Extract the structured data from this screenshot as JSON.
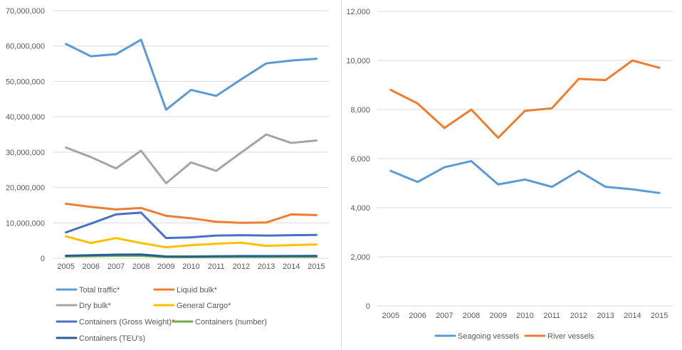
{
  "page": {
    "background_color": "#ffffff",
    "divider_color": "#d9d9d9",
    "gridline_color": "#d9d9d9",
    "axis_text_color": "#595959"
  },
  "chart_data": [
    {
      "id": "cargo-traffic",
      "type": "line",
      "title": "",
      "xlabel": "",
      "ylabel": "",
      "grid": true,
      "legend_position": "bottom-left-two-columns",
      "x": [
        2005,
        2006,
        2007,
        2008,
        2009,
        2010,
        2011,
        2012,
        2013,
        2014,
        2015
      ],
      "ylim": [
        0,
        70000000
      ],
      "ytick_step": 10000000,
      "series": [
        {
          "name": "Total traffic*",
          "color": "#5B9BD5",
          "values": [
            60600000,
            57100000,
            57700000,
            61800000,
            42000000,
            47600000,
            45900000,
            50600000,
            55100000,
            55900000,
            56400000
          ]
        },
        {
          "name": "Liquid bulk*",
          "color": "#ED7D31",
          "values": [
            15400000,
            14500000,
            13800000,
            14200000,
            12000000,
            11300000,
            10300000,
            10000000,
            10100000,
            12400000,
            12200000
          ]
        },
        {
          "name": "Dry bulk*",
          "color": "#A5A5A5",
          "values": [
            31300000,
            28600000,
            25400000,
            30400000,
            21200000,
            27100000,
            24700000,
            29900000,
            35000000,
            32600000,
            33300000
          ]
        },
        {
          "name": "General Cargo*",
          "color": "#FFC000",
          "values": [
            6200000,
            4300000,
            5700000,
            4300000,
            3100000,
            3700000,
            4100000,
            4400000,
            3500000,
            3700000,
            3900000
          ]
        },
        {
          "name": "Containers (Gross Weight)*",
          "color": "#4472C4",
          "values": [
            7300000,
            9800000,
            12400000,
            12900000,
            5700000,
            5900000,
            6400000,
            6500000,
            6400000,
            6500000,
            6600000
          ]
        },
        {
          "name": "Containers (number)",
          "color": "#70AD47",
          "values": [
            500000,
            600000,
            700000,
            700000,
            350000,
            330000,
            380000,
            400000,
            400000,
            420000,
            430000
          ]
        },
        {
          "name": "Containers (TEU's)",
          "color": "#255E91",
          "values": [
            700000,
            850000,
            1000000,
            1050000,
            500000,
            480000,
            550000,
            600000,
            600000,
            630000,
            660000
          ]
        }
      ]
    },
    {
      "id": "vessel-counts",
      "type": "line",
      "title": "",
      "xlabel": "",
      "ylabel": "",
      "grid": true,
      "legend_position": "bottom-center",
      "x": [
        2005,
        2006,
        2007,
        2008,
        2009,
        2010,
        2011,
        2012,
        2013,
        2014,
        2015
      ],
      "ylim": [
        0,
        12000
      ],
      "ytick_step": 2000,
      "series": [
        {
          "name": "Seagoing vessels",
          "color": "#5B9BD5",
          "values": [
            5500,
            5050,
            5650,
            5900,
            4950,
            5150,
            4850,
            5500,
            4850,
            4750,
            4600
          ]
        },
        {
          "name": "River vessels",
          "color": "#ED7D31",
          "values": [
            8800,
            8250,
            7250,
            8000,
            6850,
            7950,
            8050,
            9250,
            9200,
            10000,
            9700
          ]
        }
      ]
    }
  ]
}
